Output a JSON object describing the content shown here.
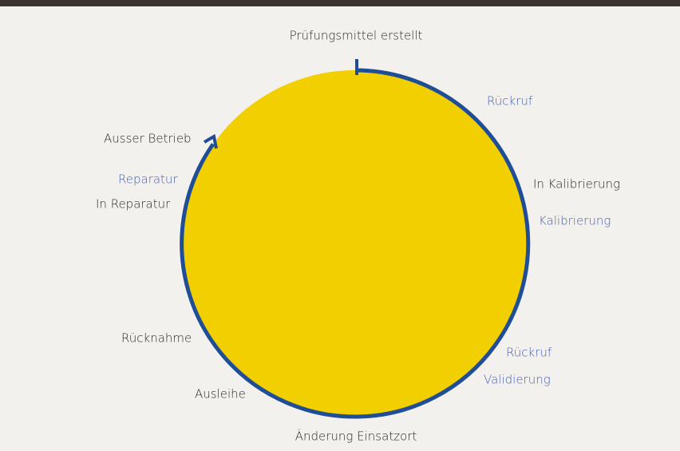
{
  "states": [
    "Prüfungsmittel erstellt",
    "In Kalibrierung",
    "Änderung Einsatzort",
    "Ausleihe",
    "Rücknahme",
    "In Reparatur",
    "Ausser Betrieb"
  ],
  "transitions": [
    "Rückruf",
    "Kalibrierung",
    "Rückruf",
    "Validierung",
    "Reparatur"
  ]
}
